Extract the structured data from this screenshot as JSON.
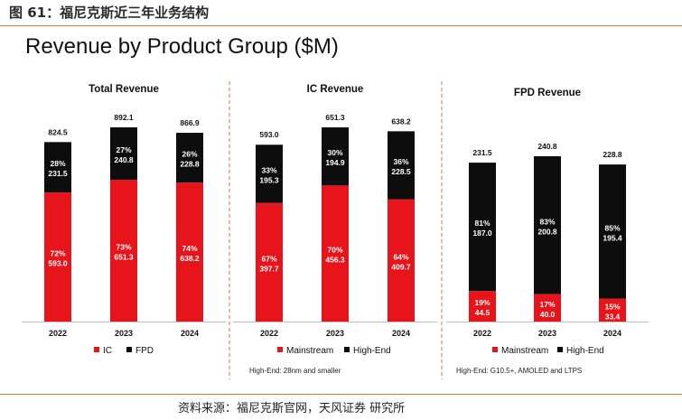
{
  "figure_caption": "图 61：福尼克斯近三年业务结构",
  "slide_title": "Revenue by Product Group ($M)",
  "source_text": "资料来源：福尼克斯官网，天风证券 研究所",
  "colors": {
    "red": "#e8141c",
    "black": "#0d0d0d",
    "accent": "#e3792b"
  },
  "chart_data": [
    {
      "type": "bar",
      "stacked": true,
      "title": "Total Revenue",
      "categories": [
        "2022",
        "2023",
        "2024"
      ],
      "totals": [
        "824.5",
        "892.1",
        "866.9"
      ],
      "series": [
        {
          "name": "IC",
          "color": "#e8141c",
          "values": [
            593.0,
            651.3,
            638.2
          ],
          "value_labels": [
            "593.0",
            "651.3",
            "638.2"
          ],
          "pct_labels": [
            "72%",
            "73%",
            "74%"
          ]
        },
        {
          "name": "FPD",
          "color": "#0d0d0d",
          "values": [
            231.5,
            240.8,
            228.8
          ],
          "value_labels": [
            "231.5",
            "240.8",
            "228.8"
          ],
          "pct_labels": [
            "28%",
            "27%",
            "26%"
          ]
        }
      ],
      "legend": [
        "IC",
        "FPD"
      ],
      "footnote": ""
    },
    {
      "type": "bar",
      "stacked": true,
      "title": "IC Revenue",
      "categories": [
        "2022",
        "2023",
        "2024"
      ],
      "totals": [
        "593.0",
        "651.3",
        "638.2"
      ],
      "series": [
        {
          "name": "Mainstream",
          "color": "#e8141c",
          "values": [
            397.7,
            456.3,
            409.7
          ],
          "value_labels": [
            "397.7",
            "456.3",
            "409.7"
          ],
          "pct_labels": [
            "67%",
            "70%",
            "64%"
          ]
        },
        {
          "name": "High-End",
          "color": "#0d0d0d",
          "values": [
            195.3,
            194.9,
            228.5
          ],
          "value_labels": [
            "195.3",
            "194.9",
            "228.5"
          ],
          "pct_labels": [
            "33%",
            "30%",
            "36%"
          ]
        }
      ],
      "legend": [
        "Mainstream",
        "High-End"
      ],
      "footnote": "High-End: 28nm and smaller"
    },
    {
      "type": "bar",
      "stacked": true,
      "title": "FPD Revenue",
      "categories": [
        "2022",
        "2023",
        "2024"
      ],
      "totals": [
        "231.5",
        "240.8",
        "228.8"
      ],
      "series": [
        {
          "name": "Mainstream",
          "color": "#e8141c",
          "values": [
            44.5,
            40.0,
            33.4
          ],
          "value_labels": [
            "44.5",
            "40.0",
            "33.4"
          ],
          "pct_labels": [
            "19%",
            "17%",
            "15%"
          ]
        },
        {
          "name": "High-End",
          "color": "#0d0d0d",
          "values": [
            187.0,
            200.8,
            195.4
          ],
          "value_labels": [
            "187.0",
            "200.8",
            "195.4"
          ],
          "pct_labels": [
            "81%",
            "83%",
            "85%"
          ]
        }
      ],
      "legend": [
        "Mainstream",
        "High-End"
      ],
      "footnote": "High-End: G10.5+, AMOLED and LTPS"
    }
  ]
}
